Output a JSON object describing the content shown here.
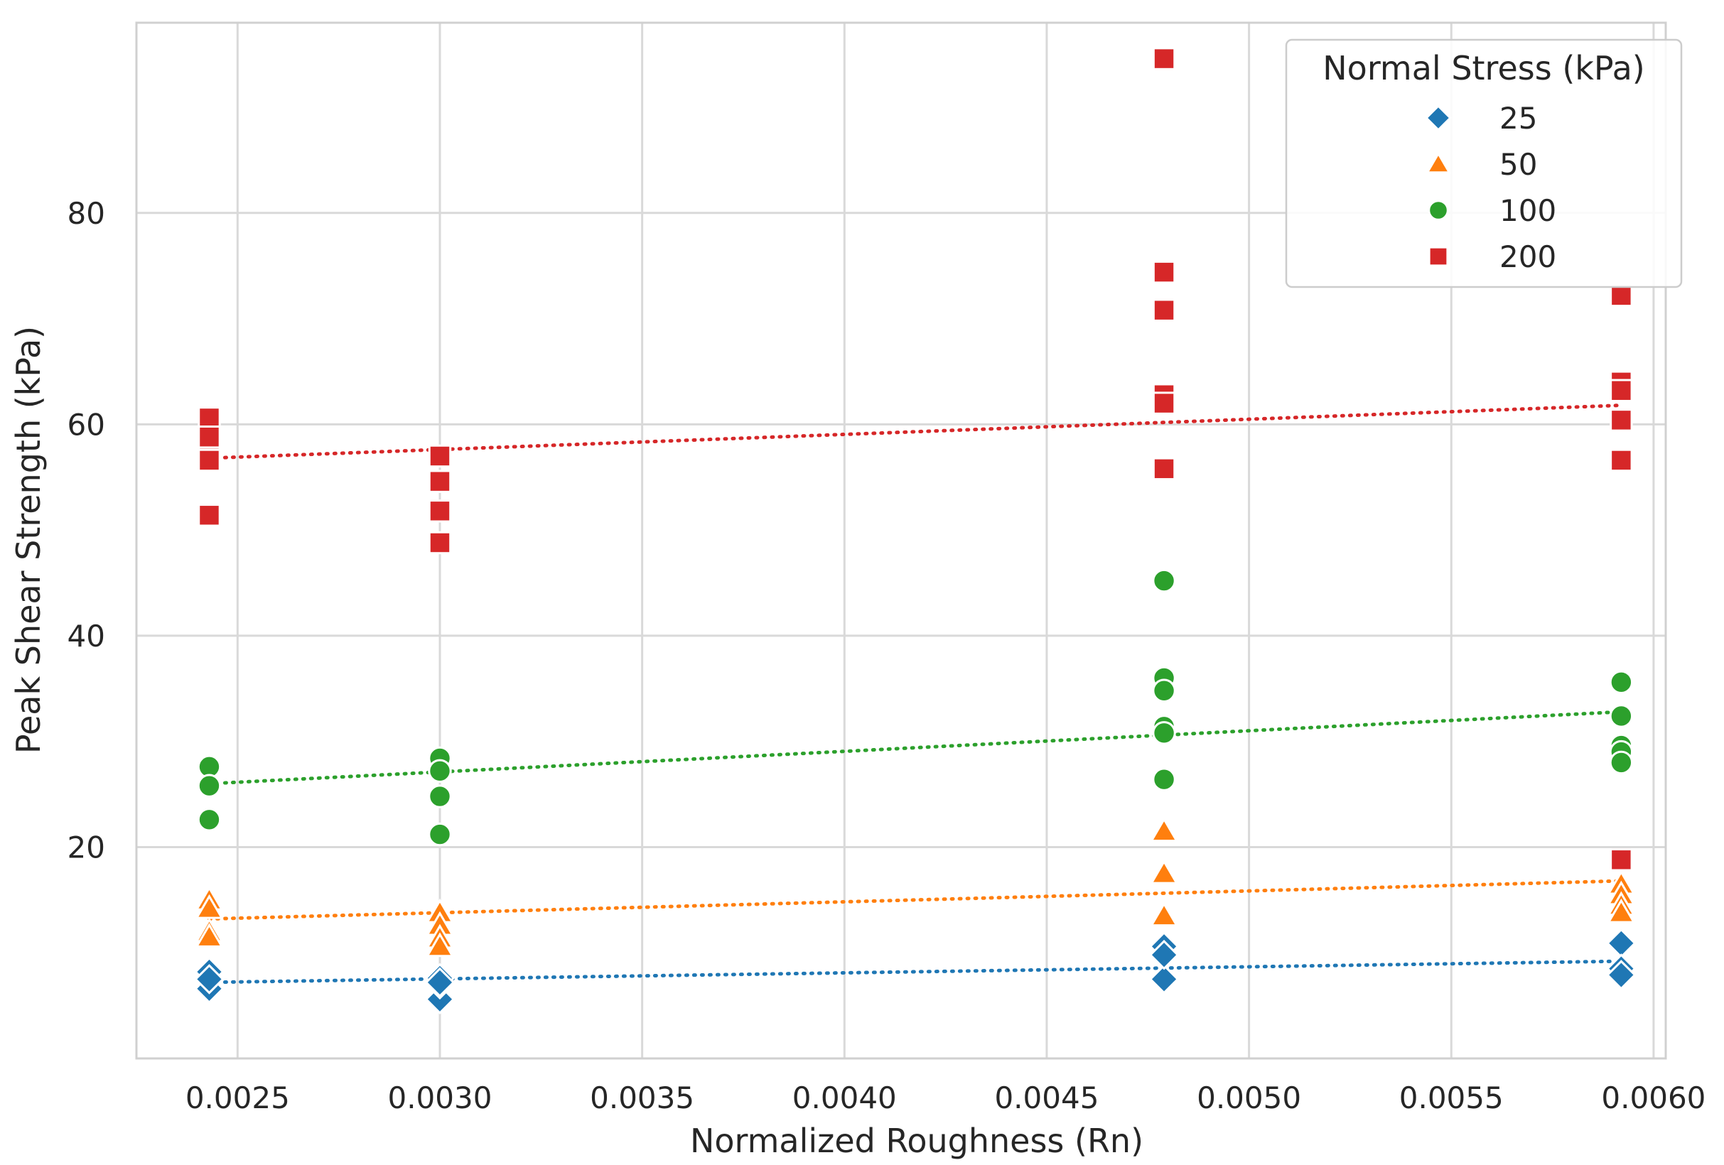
{
  "chart_data": {
    "type": "scatter",
    "title": "",
    "xlabel": "Normalized Roughness (Rn)",
    "ylabel": "Peak Shear Strength (kPa)",
    "xlim": [
      0.00225,
      0.00603
    ],
    "ylim": [
      0,
      98
    ],
    "xticks": [
      0.0025,
      0.003,
      0.0035,
      0.004,
      0.0045,
      0.005,
      0.0055,
      0.006
    ],
    "xtick_labels": [
      "0.0025",
      "0.0030",
      "0.0035",
      "0.0040",
      "0.0045",
      "0.0050",
      "0.0055",
      "0.0060"
    ],
    "yticks": [
      20,
      40,
      60,
      80
    ],
    "ytick_labels": [
      "20",
      "40",
      "60",
      "80"
    ],
    "grid": true,
    "legend": {
      "title": "Normal Stress (kPa)",
      "placement": "top-right"
    },
    "series": [
      {
        "name": "25",
        "marker": "diamond",
        "color": "#1f77b4",
        "x": [
          0.00243,
          0.00243,
          0.00243,
          0.003,
          0.003,
          0.003,
          0.003,
          0.00479,
          0.00479,
          0.00479,
          0.00592,
          0.00592,
          0.00592
        ],
        "y": [
          8.2,
          6.6,
          7.5,
          7.6,
          5.6,
          7.0,
          7.2,
          10.6,
          7.5,
          9.8,
          10.9,
          8.5,
          7.9
        ],
        "trend": [
          [
            0.00243,
            7.2
          ],
          [
            0.00592,
            9.2
          ]
        ]
      },
      {
        "name": "50",
        "marker": "triangle",
        "color": "#ff7f0e",
        "x": [
          0.00243,
          0.00243,
          0.00243,
          0.00243,
          0.003,
          0.003,
          0.003,
          0.003,
          0.00479,
          0.00479,
          0.00479,
          0.00592,
          0.00592,
          0.00592,
          0.00592
        ],
        "y": [
          15.0,
          14.2,
          12.0,
          11.5,
          13.8,
          12.6,
          11.4,
          10.6,
          21.5,
          17.5,
          13.5,
          16.5,
          15.5,
          14.5,
          13.8
        ],
        "trend": [
          [
            0.00243,
            13.2
          ],
          [
            0.00592,
            16.8
          ]
        ]
      },
      {
        "name": "100",
        "marker": "circle",
        "color": "#2ca02c",
        "x": [
          0.00243,
          0.00243,
          0.00243,
          0.003,
          0.003,
          0.003,
          0.003,
          0.00479,
          0.00479,
          0.00479,
          0.00479,
          0.00479,
          0.00479,
          0.00592,
          0.00592,
          0.00592,
          0.00592,
          0.00592
        ],
        "y": [
          27.6,
          25.8,
          22.6,
          28.4,
          27.2,
          24.8,
          21.2,
          45.2,
          36.0,
          34.8,
          31.4,
          30.8,
          26.4,
          35.6,
          32.4,
          29.6,
          29.0,
          28.0
        ],
        "trend": [
          [
            0.00243,
            26.0
          ],
          [
            0.00592,
            32.8
          ]
        ]
      },
      {
        "name": "200",
        "marker": "square",
        "color": "#d62728",
        "x": [
          0.00243,
          0.00243,
          0.00243,
          0.00243,
          0.00243,
          0.003,
          0.003,
          0.003,
          0.003,
          0.00479,
          0.00479,
          0.00479,
          0.00479,
          0.00479,
          0.00479,
          0.00592,
          0.00592,
          0.00592,
          0.00592,
          0.00592,
          0.00592
        ],
        "y": [
          60.6,
          58.2,
          56.6,
          58.8,
          51.4,
          57.0,
          54.6,
          51.8,
          48.8,
          94.6,
          74.4,
          70.8,
          62.8,
          62.0,
          55.8,
          72.2,
          64.0,
          63.2,
          60.4,
          56.6,
          18.8
        ],
        "trend": [
          [
            0.00243,
            56.8
          ],
          [
            0.00592,
            61.8
          ]
        ]
      }
    ]
  }
}
